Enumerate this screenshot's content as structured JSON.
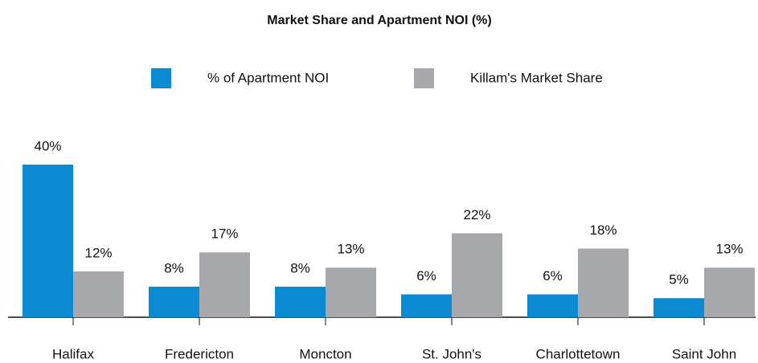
{
  "chart_data": {
    "type": "bar",
    "title": "Market Share and Apartment NOI (%)",
    "categories": [
      "Halifax",
      "Fredericton",
      "Moncton",
      "St. John's",
      "Charlottetown",
      "Saint John"
    ],
    "series": [
      {
        "name": "% of Apartment NOI",
        "color": "#0a8ad2",
        "values": [
          40,
          8,
          8,
          6,
          6,
          5
        ],
        "value_labels": [
          "40%",
          "8%",
          "8%",
          "6%",
          "6%",
          "5%"
        ]
      },
      {
        "name": "Killam's Market Share",
        "color": "#a6a8ab",
        "values": [
          12,
          17,
          13,
          22,
          18,
          13
        ],
        "value_labels": [
          "12%",
          "17%",
          "13%",
          "22%",
          "18%",
          "13%"
        ]
      }
    ],
    "ylim": [
      0,
      40
    ]
  }
}
